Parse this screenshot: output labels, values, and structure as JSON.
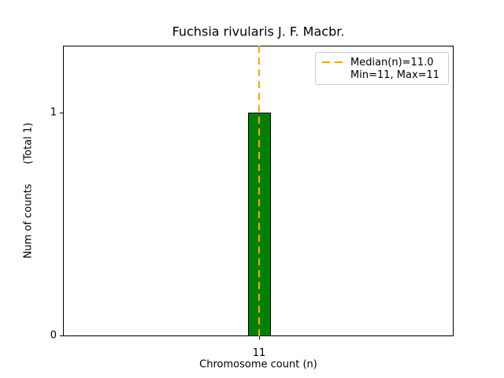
{
  "chart_data": {
    "type": "bar",
    "title": "Fuchsia rivularis J. F. Macbr.",
    "xlabel": "Chromosome count (n)",
    "ylabel": "Num of counts      (Total 1)",
    "categories": [
      11
    ],
    "values": [
      1
    ],
    "xtick_labels": [
      "11"
    ],
    "ytick_labels": [
      "0",
      "1"
    ],
    "ylim": [
      0,
      1.3
    ],
    "grid": "off",
    "legend": {
      "position": "upper right",
      "entries": [
        {
          "label": "Median(n)=11.0",
          "marker": "orange-dashed-line"
        },
        {
          "label": "Min=11, Max=11",
          "marker": "none"
        }
      ]
    },
    "median_line": {
      "value": 11.0,
      "orientation": "vertical",
      "style": "dashed"
    },
    "colors": {
      "bar_fill": "#008000",
      "bar_edge": "#000000",
      "median_line": "#FFA500",
      "legend_border": "#cccccc",
      "axes": "#000000",
      "background": "#ffffff"
    }
  }
}
